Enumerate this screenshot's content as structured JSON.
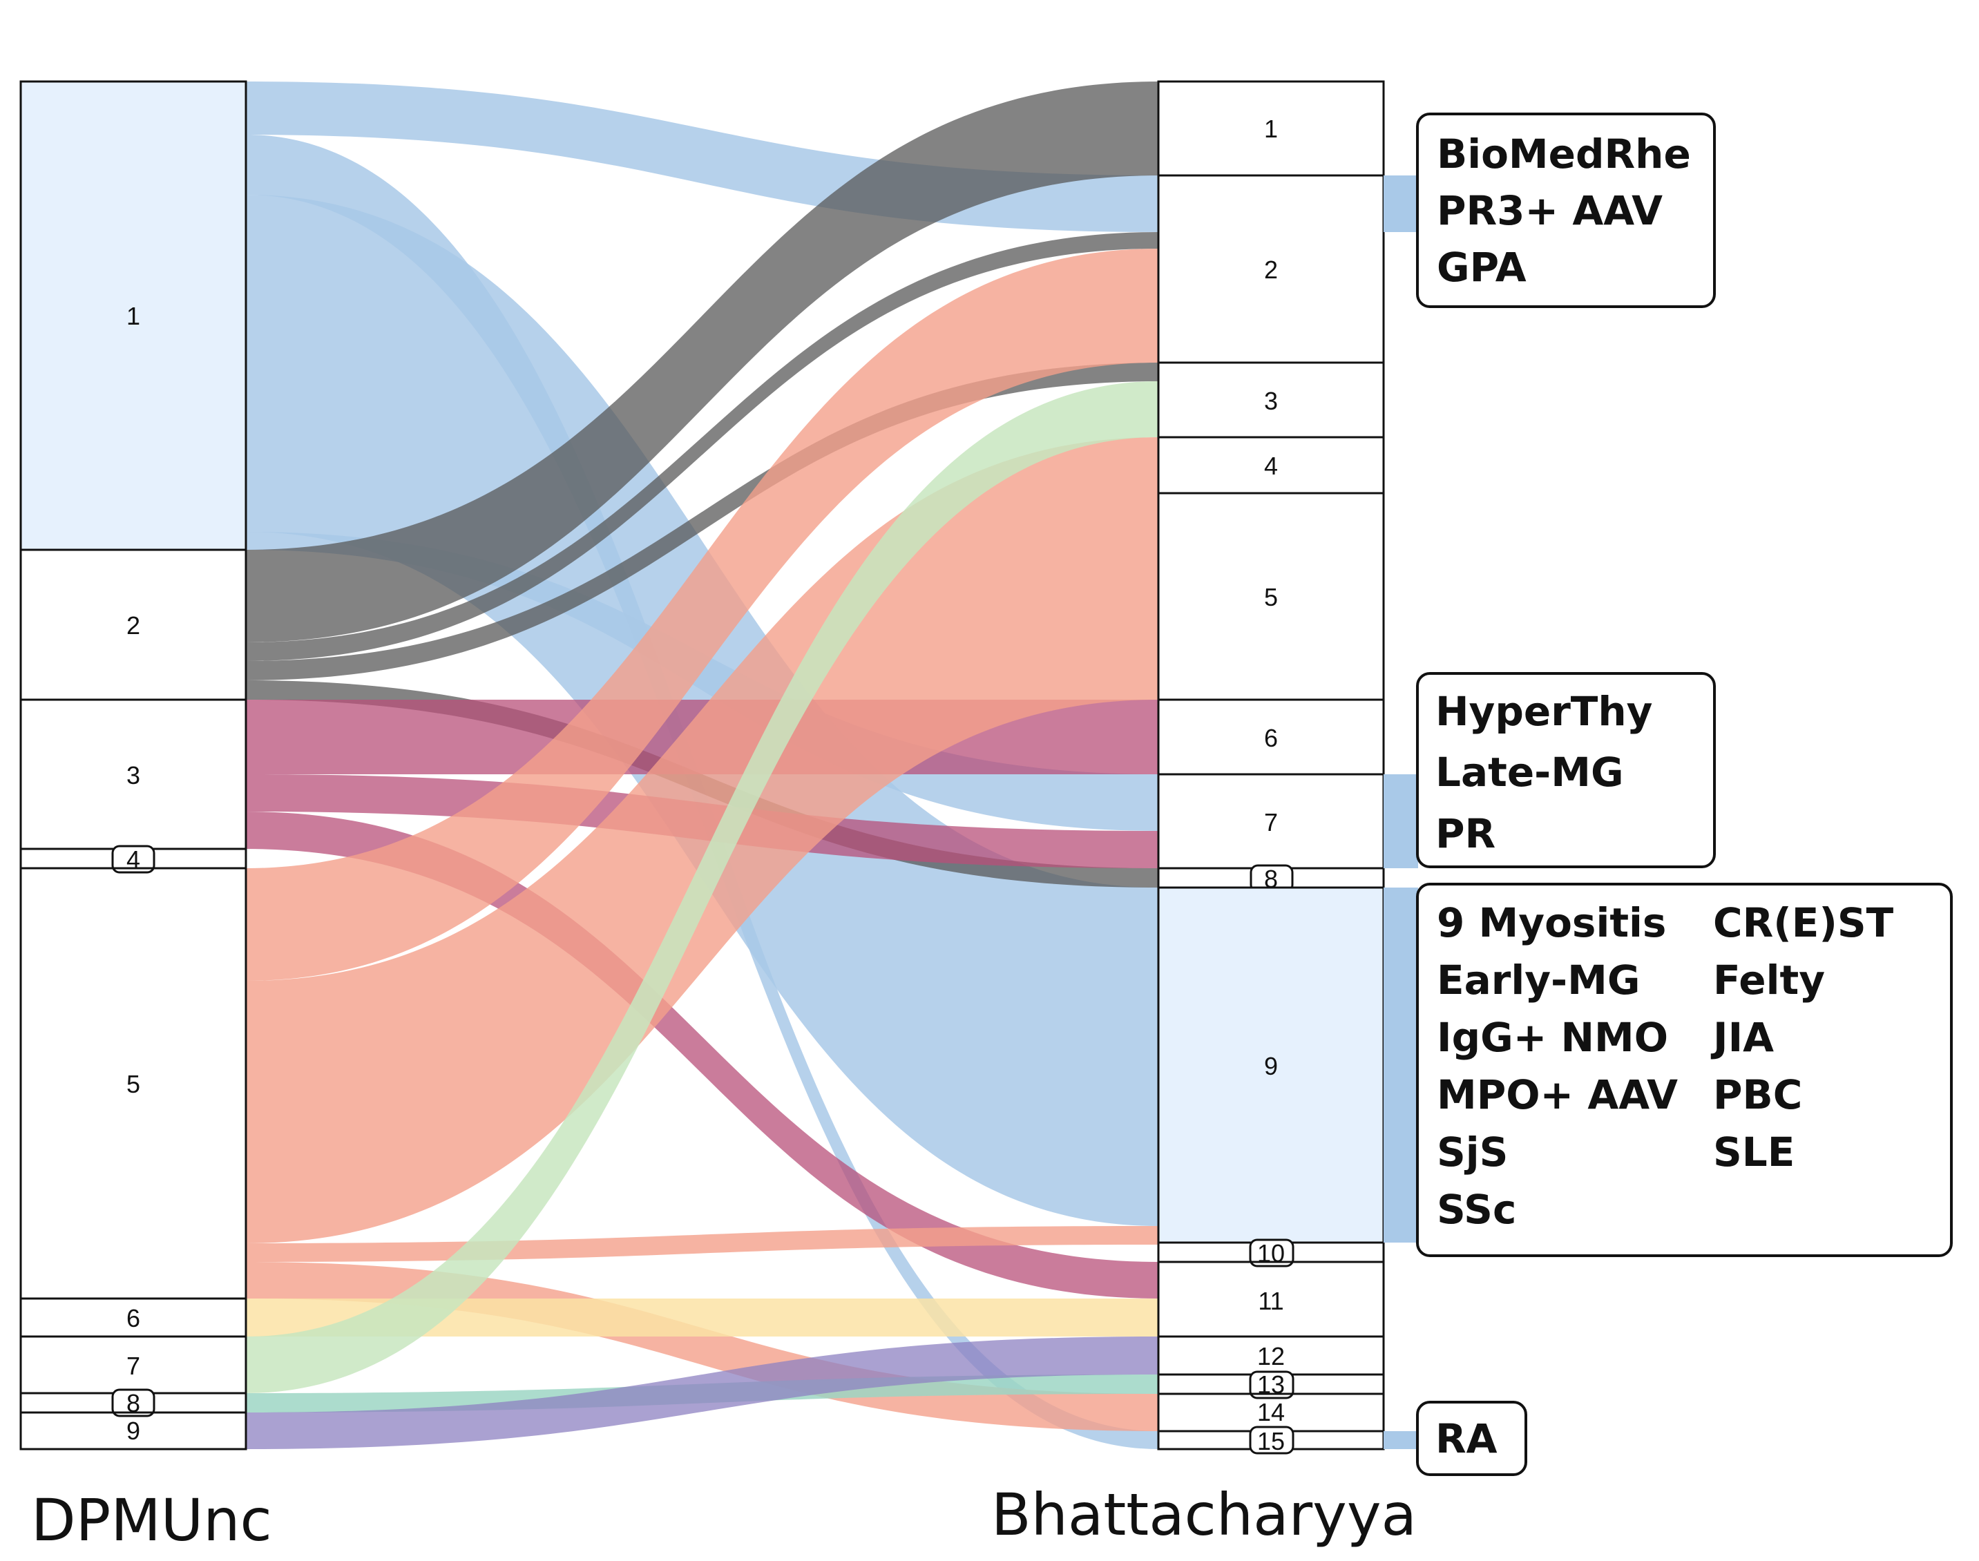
{
  "axes": {
    "left_title": "DPMUnc",
    "right_title": "Bhattacharyya"
  },
  "left_nodes": [
    "1",
    "2",
    "3",
    "4",
    "5",
    "6",
    "7",
    "8",
    "9"
  ],
  "right_nodes": [
    "1",
    "2",
    "3",
    "4",
    "5",
    "6",
    "7",
    "8",
    "9",
    "10",
    "11",
    "12",
    "13",
    "14",
    "15"
  ],
  "label_boxes": {
    "box1": {
      "lines": [
        "BioMedRhe",
        "PR3+ AAV",
        "GPA"
      ]
    },
    "box2": {
      "lines": [
        "HyperThy",
        "Late-MG",
        "PR"
      ]
    },
    "box3": {
      "col1": [
        "9 Myositis",
        "Early-MG",
        "IgG+ NMO",
        "MPO+ AAV",
        "SjS",
        "SSc"
      ],
      "col2": [
        "CR(E)ST",
        "Felty",
        "JIA",
        "PBC",
        "SLE"
      ]
    },
    "box4": {
      "lines": [
        "RA"
      ]
    }
  },
  "colors": {
    "blue": "#a9c9e8",
    "grey": "#595959",
    "salmon": "#f4a08b",
    "green": "#c8e6c0",
    "purple": "#b8507a",
    "yellow": "#fbe3a6",
    "teal": "#9ed6c4",
    "violet": "#8e82c2",
    "node_fill_highlight": "#e6f1fd"
  }
}
